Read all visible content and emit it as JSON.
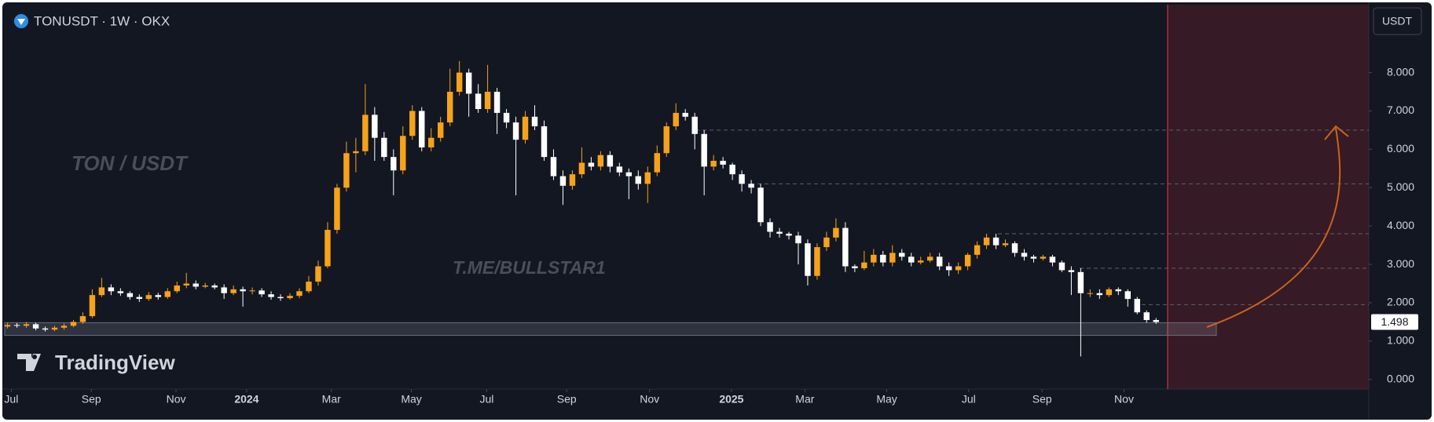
{
  "header": {
    "currency": "USDT",
    "watermark": "TON / USDT",
    "channel": "T.ME/BULLSTAR1",
    "logo": "TradingView"
  },
  "chart_data": {
    "type": "candlestick",
    "title": "TONUSDT · 1W · OKX",
    "series": [
      {
        "up_color": "#f7a21b",
        "down_color": "#ffffff",
        "open": [
          1.38,
          1.42,
          1.4,
          1.44,
          1.33,
          1.3,
          1.35,
          1.4,
          1.5,
          1.65,
          2.2,
          2.4,
          2.3,
          2.25,
          2.15,
          2.1,
          2.2,
          2.15,
          2.3,
          2.45,
          2.5,
          2.42,
          2.45,
          2.4,
          2.25,
          2.35,
          2.3,
          2.32,
          2.22,
          2.15,
          2.12,
          2.18,
          2.3,
          2.55,
          2.95,
          3.9,
          5.0,
          5.9,
          5.95,
          6.9,
          6.3,
          5.8,
          5.45,
          6.35,
          7.0,
          6.05,
          6.3,
          6.7,
          7.5,
          8.0,
          7.45,
          7.05,
          7.5,
          6.95,
          6.7,
          6.25,
          6.85,
          6.6,
          5.8,
          5.3,
          5.05,
          5.35,
          5.65,
          5.55,
          5.85,
          5.55,
          5.4,
          5.3,
          5.1,
          5.4,
          5.9,
          6.6,
          6.95,
          6.85,
          6.4,
          5.55,
          5.7,
          5.6,
          5.35,
          5.1,
          5.0,
          4.1,
          3.85,
          3.8,
          3.75,
          3.55,
          2.7,
          3.45,
          3.7,
          3.95,
          2.95,
          2.9,
          3.05,
          3.25,
          3.05,
          3.3,
          3.2,
          3.05,
          3.1,
          3.2,
          2.95,
          2.85,
          2.95,
          3.25,
          3.5,
          3.7,
          3.5,
          3.55,
          3.3,
          3.2,
          3.15,
          3.2,
          3.05,
          2.85,
          2.8,
          2.25,
          2.25,
          2.2,
          2.35,
          2.3,
          2.1,
          1.75,
          1.55
        ],
        "high": [
          1.48,
          1.47,
          1.5,
          1.48,
          1.38,
          1.4,
          1.46,
          1.55,
          1.75,
          2.35,
          2.65,
          2.48,
          2.38,
          2.3,
          2.22,
          2.28,
          2.26,
          2.38,
          2.55,
          2.78,
          2.58,
          2.52,
          2.5,
          2.48,
          2.45,
          2.42,
          2.4,
          2.38,
          2.3,
          2.22,
          2.25,
          2.38,
          2.7,
          3.1,
          4.1,
          5.1,
          6.2,
          6.3,
          7.7,
          7.1,
          6.45,
          6.0,
          6.6,
          7.15,
          7.1,
          6.55,
          6.85,
          8.1,
          8.3,
          8.1,
          7.7,
          8.2,
          7.6,
          7.05,
          6.85,
          7.0,
          7.15,
          6.75,
          6.0,
          5.45,
          5.45,
          6.05,
          5.8,
          5.95,
          5.95,
          5.65,
          5.5,
          5.45,
          5.55,
          6.1,
          6.7,
          7.2,
          7.05,
          6.95,
          6.5,
          5.85,
          5.8,
          5.65,
          5.45,
          5.2,
          5.1,
          4.2,
          3.95,
          3.85,
          3.85,
          3.65,
          3.55,
          3.85,
          4.2,
          4.1,
          3.0,
          3.35,
          3.4,
          3.35,
          3.5,
          3.4,
          3.3,
          3.2,
          3.3,
          3.3,
          3.05,
          3.05,
          3.3,
          3.6,
          3.8,
          3.8,
          3.65,
          3.6,
          3.4,
          3.25,
          3.25,
          3.25,
          3.1,
          2.95,
          2.9,
          2.35,
          2.35,
          2.4,
          2.4,
          2.35,
          2.15,
          1.8,
          1.6
        ],
        "low": [
          1.33,
          1.35,
          1.35,
          1.28,
          1.25,
          1.26,
          1.3,
          1.36,
          1.45,
          1.6,
          2.15,
          2.2,
          2.18,
          2.08,
          2.02,
          2.05,
          2.08,
          2.1,
          2.25,
          2.38,
          2.35,
          2.38,
          2.35,
          2.1,
          2.2,
          1.9,
          2.22,
          2.15,
          2.08,
          2.05,
          2.08,
          2.12,
          2.25,
          2.45,
          2.9,
          3.8,
          4.9,
          5.4,
          5.85,
          5.7,
          5.7,
          4.8,
          5.35,
          6.25,
          5.95,
          5.95,
          6.2,
          6.6,
          7.4,
          6.85,
          6.95,
          6.95,
          6.4,
          6.55,
          4.8,
          6.15,
          6.5,
          5.7,
          5.2,
          4.55,
          4.95,
          5.25,
          5.45,
          5.45,
          5.4,
          5.3,
          4.7,
          4.95,
          4.6,
          5.3,
          5.8,
          6.5,
          6.75,
          6.0,
          4.8,
          5.45,
          5.5,
          5.2,
          4.9,
          4.85,
          4.0,
          3.7,
          3.7,
          3.65,
          3.0,
          2.45,
          2.6,
          3.35,
          3.6,
          2.8,
          2.8,
          2.85,
          2.95,
          2.95,
          2.95,
          3.1,
          2.95,
          3.0,
          3.05,
          2.85,
          2.7,
          2.75,
          2.85,
          3.15,
          3.4,
          3.4,
          3.45,
          3.2,
          3.1,
          3.05,
          3.1,
          2.95,
          2.8,
          2.2,
          0.6,
          2.15,
          2.1,
          2.15,
          2.2,
          1.9,
          1.7,
          1.48,
          1.45
        ],
        "close": [
          1.42,
          1.4,
          1.44,
          1.33,
          1.3,
          1.35,
          1.4,
          1.5,
          1.65,
          2.2,
          2.4,
          2.3,
          2.25,
          2.15,
          2.1,
          2.2,
          2.15,
          2.3,
          2.45,
          2.5,
          2.42,
          2.45,
          2.4,
          2.25,
          2.35,
          2.3,
          2.32,
          2.22,
          2.15,
          2.12,
          2.18,
          2.3,
          2.55,
          2.95,
          3.9,
          5.0,
          5.9,
          5.95,
          6.9,
          6.3,
          5.8,
          5.45,
          6.35,
          7.0,
          6.05,
          6.3,
          6.7,
          7.5,
          8.0,
          7.45,
          7.05,
          7.5,
          6.95,
          6.7,
          6.25,
          6.85,
          6.6,
          5.8,
          5.3,
          5.05,
          5.35,
          5.65,
          5.55,
          5.85,
          5.55,
          5.4,
          5.3,
          5.1,
          5.4,
          5.9,
          6.6,
          6.95,
          6.85,
          6.4,
          5.55,
          5.7,
          5.6,
          5.35,
          5.1,
          5.0,
          4.1,
          3.85,
          3.8,
          3.75,
          3.55,
          2.7,
          3.45,
          3.7,
          3.95,
          2.95,
          2.9,
          3.05,
          3.25,
          3.05,
          3.3,
          3.2,
          3.05,
          3.1,
          3.2,
          2.95,
          2.85,
          2.95,
          3.25,
          3.5,
          3.7,
          3.5,
          3.55,
          3.3,
          3.2,
          3.15,
          3.2,
          3.05,
          2.85,
          2.8,
          2.25,
          2.25,
          2.2,
          2.35,
          2.3,
          2.1,
          1.75,
          1.55,
          1.498
        ]
      }
    ],
    "xlim": [
      -0.3,
      144.6
    ],
    "xticks": [
      {
        "value": 0.4,
        "label": "Jul"
      },
      {
        "value": 8.9,
        "label": "Sep"
      },
      {
        "value": 17.9,
        "label": "Nov"
      },
      {
        "value": 25.4,
        "label": "2024"
      },
      {
        "value": 34.4,
        "label": "Mar"
      },
      {
        "value": 42.9,
        "label": "May"
      },
      {
        "value": 50.9,
        "label": "Jul"
      },
      {
        "value": 59.4,
        "label": "Sep"
      },
      {
        "value": 68.2,
        "label": "Nov"
      },
      {
        "value": 76.9,
        "label": "2025"
      },
      {
        "value": 84.7,
        "label": "Mar"
      },
      {
        "value": 93.4,
        "label": "May"
      },
      {
        "value": 102.1,
        "label": "Jul"
      },
      {
        "value": 109.9,
        "label": "Sep"
      },
      {
        "value": 118.6,
        "label": "Nov"
      }
    ],
    "ylim": [
      -0.25,
      9.77
    ],
    "yticks": [
      {
        "value": 0,
        "label": "0.000"
      },
      {
        "value": 1,
        "label": "1.000"
      },
      {
        "value": 2,
        "label": "2.000"
      },
      {
        "value": 3,
        "label": "3.000"
      },
      {
        "value": 4,
        "label": "4.000"
      },
      {
        "value": 5,
        "label": "5.000"
      },
      {
        "value": 6,
        "label": "6.000"
      },
      {
        "value": 7,
        "label": "7.000"
      },
      {
        "value": 8,
        "label": "8.000"
      }
    ],
    "levels": [
      6.5,
      5.1,
      3.8,
      2.9,
      1.95
    ],
    "support_zone": [
      1.15,
      1.48
    ]
  }
}
